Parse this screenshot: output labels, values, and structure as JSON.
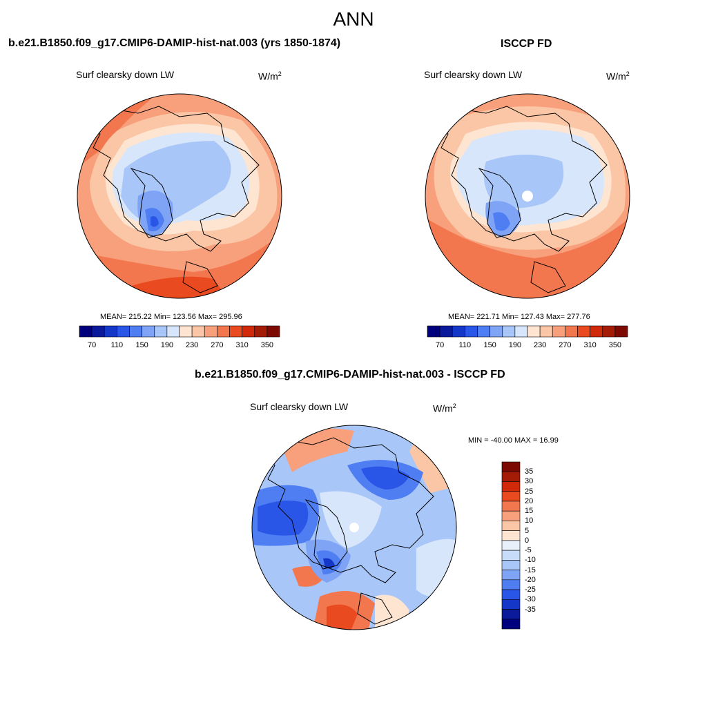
{
  "main_title": "ANN",
  "panels": [
    {
      "title": "b.e21.B1850.f09_g17.CMIP6-DAMIP-hist-nat.003 (yrs 1850-1874)",
      "variable": "Surf clearsky down LW",
      "units_base": "W/m",
      "units_sup": "2",
      "stats": "MEAN= 215.22  Min= 123.56  Max= 295.96"
    },
    {
      "title": "ISCCP FD",
      "variable": "Surf clearsky down LW",
      "units_base": "W/m",
      "units_sup": "2",
      "stats": "MEAN= 221.71  Min= 127.43  Max= 277.76"
    },
    {
      "title": "b.e21.B1850.f09_g17.CMIP6-DAMIP-hist-nat.003 - ISCCP FD",
      "variable": "Surf clearsky down LW",
      "units_base": "W/m",
      "units_sup": "2",
      "stats": "MIN = -40.00 MAX =  16.99"
    }
  ],
  "colorbar_abs": {
    "colors": [
      "#00007f",
      "#0a1a9a",
      "#1437c8",
      "#2a56e8",
      "#4f7ef2",
      "#7fa4f5",
      "#a8c6f8",
      "#d7e6fa",
      "#fde5d2",
      "#fbc6a6",
      "#f8a07c",
      "#f2774f",
      "#ea4a20",
      "#d02a0a",
      "#a51c06",
      "#7d0a02"
    ],
    "ticks": [
      "70",
      "110",
      "150",
      "190",
      "230",
      "270",
      "310",
      "350"
    ]
  },
  "colorbar_diff": {
    "colors_top_to_bottom": [
      "#7d0a02",
      "#a51c06",
      "#d02a0a",
      "#ea4a20",
      "#f2774f",
      "#f8a07c",
      "#fbc6a6",
      "#fde5d2",
      "#e8f0fb",
      "#c7dcf8",
      "#a8c6f8",
      "#7fa4f5",
      "#4f7ef2",
      "#2a56e8",
      "#1437c8",
      "#0a1a9a",
      "#00007f"
    ],
    "ticks_top_to_bottom": [
      "35",
      "30",
      "25",
      "20",
      "15",
      "10",
      "5",
      "0",
      "-5",
      "-10",
      "-15",
      "-20",
      "-25",
      "-30",
      "-35"
    ]
  },
  "map_colors": {
    "warm1": "#fde5d2",
    "warm2": "#fbc6a6",
    "warm3": "#f8a07c",
    "warm4": "#f2774f",
    "warm5": "#ea4a20",
    "cool1": "#d7e6fa",
    "cool2": "#a8c6f8",
    "cool3": "#7fa4f5",
    "cool4": "#4f7ef2",
    "cool5": "#2a56e8",
    "cool6": "#1437c8"
  }
}
